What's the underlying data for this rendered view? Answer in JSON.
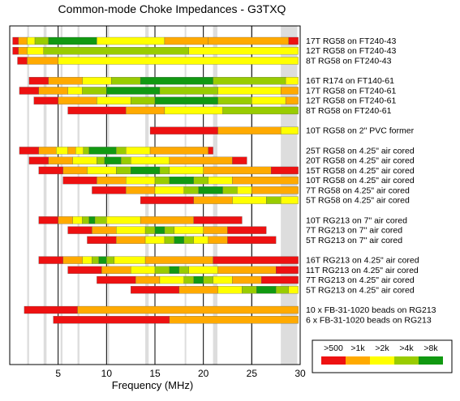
{
  "chart_data": {
    "type": "bar",
    "title": "Common-mode Choke Impedances - G3TXQ",
    "xlabel": "Frequency (MHz)",
    "xlim": [
      0,
      30
    ],
    "xticks": [
      5,
      10,
      15,
      20,
      25,
      30
    ],
    "bands_mhz": [
      [
        1.8,
        2.0
      ],
      [
        3.5,
        3.8
      ],
      [
        5.25,
        5.45
      ],
      [
        7.0,
        7.2
      ],
      [
        10.1,
        10.15
      ],
      [
        14.0,
        14.35
      ],
      [
        18.07,
        18.17
      ],
      [
        21.0,
        21.45
      ],
      [
        24.89,
        24.99
      ],
      [
        28.0,
        29.7
      ]
    ],
    "legend": {
      "placement": "bottom-right",
      "labels": [
        ">500",
        ">1k",
        ">2k",
        ">4k",
        ">8k"
      ],
      "colors": [
        "#ee1111",
        "#ffaa00",
        "#ffff00",
        "#99cc00",
        "#119911"
      ]
    },
    "series": [
      {
        "name": "17T RG58 on FT240-43",
        "gap_before": false,
        "segments": [
          [
            0.3,
            0.9,
            1
          ],
          [
            0.9,
            1.8,
            2
          ],
          [
            1.8,
            2.6,
            3
          ],
          [
            2.6,
            4.0,
            4
          ],
          [
            4.0,
            9.0,
            5
          ],
          [
            9.0,
            16.0,
            3
          ],
          [
            16.0,
            20.5,
            2
          ],
          [
            20.5,
            28.8,
            2
          ],
          [
            28.8,
            29.8,
            1
          ]
        ]
      },
      {
        "name": "12T RG58 on FT240-43",
        "gap_before": false,
        "segments": [
          [
            0.3,
            0.9,
            1
          ],
          [
            0.9,
            1.8,
            2
          ],
          [
            1.8,
            3.5,
            3
          ],
          [
            3.5,
            18.5,
            4
          ],
          [
            18.5,
            29.8,
            3
          ]
        ]
      },
      {
        "name": "8T RG58 on FT240-43",
        "gap_before": false,
        "segments": [
          [
            0.8,
            1.8,
            1
          ],
          [
            1.8,
            5.0,
            2
          ],
          [
            5.0,
            29.8,
            3
          ]
        ]
      },
      {
        "name": "16T R174 on FT140-61",
        "gap_before": true,
        "segments": [
          [
            2.0,
            4.0,
            1
          ],
          [
            4.0,
            7.5,
            2
          ],
          [
            7.5,
            10.5,
            3
          ],
          [
            10.5,
            13.5,
            4
          ],
          [
            13.5,
            21.0,
            5
          ],
          [
            21.0,
            28.5,
            4
          ],
          [
            28.5,
            29.8,
            3
          ]
        ]
      },
      {
        "name": "17T RG58 on FT240-61",
        "gap_before": false,
        "segments": [
          [
            1.0,
            3.0,
            1
          ],
          [
            3.0,
            6.0,
            2
          ],
          [
            6.0,
            7.5,
            3
          ],
          [
            7.5,
            10.0,
            4
          ],
          [
            10.0,
            15.5,
            5
          ],
          [
            15.5,
            21.5,
            4
          ],
          [
            21.5,
            28.0,
            3
          ],
          [
            28.0,
            29.8,
            2
          ]
        ]
      },
      {
        "name": "12T RG58 on FT240-61",
        "gap_before": false,
        "segments": [
          [
            2.5,
            5.0,
            1
          ],
          [
            5.0,
            9.0,
            2
          ],
          [
            9.0,
            12.5,
            3
          ],
          [
            12.5,
            15.0,
            4
          ],
          [
            15.0,
            21.5,
            5
          ],
          [
            21.5,
            25.0,
            4
          ],
          [
            25.0,
            28.5,
            3
          ],
          [
            28.5,
            29.8,
            2
          ]
        ]
      },
      {
        "name": "8T RG58 on FT240-61",
        "gap_before": false,
        "segments": [
          [
            6.0,
            12.0,
            1
          ],
          [
            12.0,
            16.0,
            2
          ],
          [
            16.0,
            22.0,
            3
          ],
          [
            22.0,
            29.8,
            4
          ]
        ]
      },
      {
        "name": "10T RG58 on 2\" PVC former",
        "gap_before": true,
        "segments": [
          [
            14.5,
            21.5,
            1
          ],
          [
            21.5,
            28.0,
            2
          ],
          [
            28.0,
            29.8,
            3
          ]
        ]
      },
      {
        "name": "25T RG58 on 4.25\" air cored",
        "gap_before": true,
        "segments": [
          [
            1.0,
            3.0,
            1
          ],
          [
            3.0,
            4.8,
            2
          ],
          [
            4.8,
            6.0,
            3
          ],
          [
            6.0,
            6.8,
            2
          ],
          [
            6.8,
            7.6,
            3
          ],
          [
            7.6,
            8.2,
            4
          ],
          [
            8.2,
            11.0,
            5
          ],
          [
            11.0,
            12.0,
            4
          ],
          [
            12.0,
            14.5,
            3
          ],
          [
            14.5,
            20.5,
            2
          ],
          [
            20.5,
            21.0,
            1
          ]
        ]
      },
      {
        "name": "20T RG58 on 4.25\" air cored",
        "gap_before": false,
        "segments": [
          [
            2.0,
            4.0,
            1
          ],
          [
            4.0,
            6.5,
            2
          ],
          [
            6.5,
            9.0,
            3
          ],
          [
            9.0,
            9.8,
            4
          ],
          [
            9.8,
            11.5,
            5
          ],
          [
            11.5,
            12.5,
            4
          ],
          [
            12.5,
            16.5,
            3
          ],
          [
            16.5,
            23.0,
            2
          ],
          [
            23.0,
            24.5,
            1
          ]
        ]
      },
      {
        "name": "15T RG58 on 4.25\" air cored",
        "gap_before": false,
        "segments": [
          [
            3.0,
            5.5,
            1
          ],
          [
            5.5,
            8.0,
            2
          ],
          [
            8.0,
            11.0,
            3
          ],
          [
            11.0,
            12.5,
            4
          ],
          [
            12.5,
            15.5,
            5
          ],
          [
            15.5,
            16.5,
            4
          ],
          [
            16.5,
            20.0,
            3
          ],
          [
            20.0,
            27.0,
            2
          ],
          [
            27.0,
            29.8,
            1
          ]
        ]
      },
      {
        "name": "10T RG58 on 4.25\" air cored",
        "gap_before": false,
        "segments": [
          [
            5.5,
            9.0,
            1
          ],
          [
            9.0,
            12.0,
            2
          ],
          [
            12.0,
            15.0,
            3
          ],
          [
            15.0,
            16.5,
            4
          ],
          [
            16.5,
            19.0,
            5
          ],
          [
            19.0,
            20.5,
            4
          ],
          [
            20.5,
            23.0,
            3
          ],
          [
            23.0,
            29.8,
            2
          ]
        ]
      },
      {
        "name": "7T RG58 on 4.25\" air cored",
        "gap_before": false,
        "segments": [
          [
            8.5,
            12.0,
            1
          ],
          [
            12.0,
            15.0,
            2
          ],
          [
            15.0,
            18.0,
            3
          ],
          [
            18.0,
            19.5,
            4
          ],
          [
            19.5,
            22.0,
            5
          ],
          [
            22.0,
            23.5,
            4
          ],
          [
            23.5,
            25.0,
            3
          ],
          [
            25.0,
            29.8,
            2
          ]
        ]
      },
      {
        "name": "5T RG58 on 4.25\" air cored",
        "gap_before": false,
        "segments": [
          [
            13.5,
            19.0,
            1
          ],
          [
            19.0,
            23.0,
            2
          ],
          [
            23.0,
            26.5,
            3
          ],
          [
            26.5,
            28.0,
            4
          ],
          [
            28.0,
            29.8,
            3
          ]
        ]
      },
      {
        "name": "10T RG213 on 7\" air cored",
        "gap_before": true,
        "segments": [
          [
            3.0,
            5.0,
            1
          ],
          [
            5.0,
            6.5,
            2
          ],
          [
            6.5,
            7.5,
            3
          ],
          [
            7.5,
            8.2,
            4
          ],
          [
            8.2,
            8.8,
            5
          ],
          [
            8.8,
            10.0,
            4
          ],
          [
            10.0,
            13.5,
            3
          ],
          [
            13.5,
            19.0,
            2
          ],
          [
            19.0,
            24.0,
            1
          ]
        ]
      },
      {
        "name": "7T RG213 on 7\" air cored",
        "gap_before": false,
        "segments": [
          [
            6.0,
            8.5,
            1
          ],
          [
            8.5,
            11.0,
            2
          ],
          [
            11.0,
            14.0,
            3
          ],
          [
            14.0,
            15.0,
            4
          ],
          [
            15.0,
            16.0,
            5
          ],
          [
            16.0,
            17.0,
            4
          ],
          [
            17.0,
            20.0,
            3
          ],
          [
            20.0,
            22.5,
            2
          ],
          [
            22.5,
            26.5,
            1
          ]
        ]
      },
      {
        "name": "5T RG213 on 7\" air cored",
        "gap_before": false,
        "segments": [
          [
            8.0,
            11.0,
            1
          ],
          [
            11.0,
            14.0,
            2
          ],
          [
            14.0,
            16.0,
            3
          ],
          [
            16.0,
            17.0,
            4
          ],
          [
            17.0,
            18.0,
            5
          ],
          [
            18.0,
            19.0,
            4
          ],
          [
            19.0,
            20.5,
            3
          ],
          [
            20.5,
            22.5,
            2
          ],
          [
            22.5,
            27.5,
            1
          ]
        ]
      },
      {
        "name": "16T RG213 on 4.25\" air cored",
        "gap_before": true,
        "segments": [
          [
            3.0,
            5.5,
            1
          ],
          [
            5.5,
            7.5,
            2
          ],
          [
            7.5,
            8.5,
            3
          ],
          [
            8.5,
            9.2,
            4
          ],
          [
            9.2,
            10.0,
            5
          ],
          [
            10.0,
            10.8,
            4
          ],
          [
            10.8,
            14.0,
            3
          ],
          [
            14.0,
            21.0,
            2
          ],
          [
            21.0,
            29.8,
            1
          ]
        ]
      },
      {
        "name": "11T RG213 on 4.25\" air cored",
        "gap_before": false,
        "segments": [
          [
            6.0,
            9.5,
            1
          ],
          [
            9.5,
            12.5,
            2
          ],
          [
            12.5,
            15.0,
            3
          ],
          [
            15.0,
            16.5,
            4
          ],
          [
            16.5,
            17.5,
            5
          ],
          [
            17.5,
            18.5,
            4
          ],
          [
            18.5,
            21.5,
            3
          ],
          [
            21.5,
            27.5,
            2
          ],
          [
            27.5,
            29.8,
            1
          ]
        ]
      },
      {
        "name": "7T RG213 on 4.25\" air cored",
        "gap_before": false,
        "segments": [
          [
            9.0,
            13.0,
            1
          ],
          [
            13.0,
            15.5,
            2
          ],
          [
            15.5,
            18.0,
            3
          ],
          [
            18.0,
            19.0,
            4
          ],
          [
            19.0,
            20.0,
            5
          ],
          [
            20.0,
            21.0,
            4
          ],
          [
            21.0,
            23.0,
            3
          ],
          [
            23.0,
            26.0,
            2
          ],
          [
            26.0,
            29.8,
            1
          ]
        ]
      },
      {
        "name": "5T RG213 on 4.25\" air cored",
        "gap_before": false,
        "segments": [
          [
            12.5,
            17.5,
            1
          ],
          [
            17.5,
            21.5,
            2
          ],
          [
            21.5,
            24.0,
            3
          ],
          [
            24.0,
            25.5,
            4
          ],
          [
            25.5,
            27.5,
            5
          ],
          [
            27.5,
            28.8,
            4
          ],
          [
            28.8,
            29.8,
            3
          ]
        ]
      },
      {
        "name": "10 x FB-31-1020 beads on RG213",
        "gap_before": true,
        "segments": [
          [
            1.5,
            7.0,
            1
          ],
          [
            7.0,
            29.8,
            2
          ]
        ]
      },
      {
        "name": "6 x FB-31-1020 beads on RG213",
        "gap_before": false,
        "segments": [
          [
            4.5,
            16.5,
            1
          ],
          [
            16.5,
            29.8,
            2
          ]
        ]
      }
    ]
  }
}
